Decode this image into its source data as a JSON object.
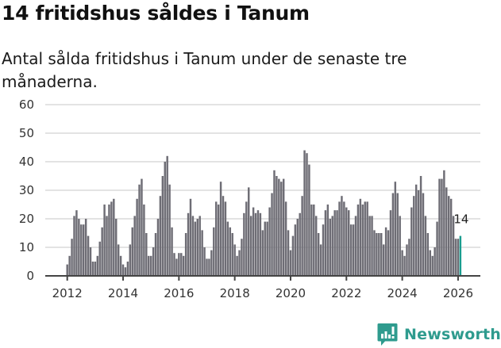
{
  "header": {
    "title": "14 fritidshus såldes i Tanum",
    "subtitle": "Antal sålda fritidshus i Tanum under de senaste tre månaderna."
  },
  "branding": {
    "logo_label": "Newsworthy",
    "logo_icon": "newsworthy-bar-chart-bubble-icon",
    "brand_color": "#2f9b8e"
  },
  "colors": {
    "bar": "#6e6d75",
    "highlight": "#1a9d8f",
    "grid": "#e3e3e3",
    "axis": "#444444"
  },
  "chart_data": {
    "type": "bar",
    "title": "14 fritidshus såldes i Tanum",
    "subtitle": "Antal sålda fritidshus i Tanum under de senaste tre månaderna.",
    "xlabel": "",
    "ylabel": "",
    "ylim": [
      0,
      60
    ],
    "yticks": [
      0,
      10,
      20,
      30,
      40,
      50,
      60
    ],
    "xticks": [
      "2012",
      "2014",
      "2016",
      "2018",
      "2020",
      "2022",
      "2024",
      "2026"
    ],
    "grid": true,
    "legend": null,
    "start": "2012-01",
    "end": "2026-02",
    "frequency": "monthly",
    "annotation": {
      "label": "14",
      "target": "2026-02"
    },
    "highlight_index": 169,
    "values": [
      4,
      7,
      13,
      21,
      23,
      20,
      18,
      18,
      20,
      14,
      10,
      5,
      5,
      7,
      12,
      17,
      25,
      21,
      25,
      26,
      27,
      20,
      11,
      7,
      4,
      3,
      5,
      11,
      17,
      21,
      27,
      32,
      34,
      25,
      15,
      7,
      7,
      10,
      15,
      20,
      28,
      35,
      40,
      42,
      32,
      17,
      8,
      6,
      8,
      8,
      7,
      15,
      22,
      27,
      21,
      19,
      20,
      21,
      16,
      10,
      6,
      6,
      9,
      17,
      26,
      25,
      33,
      28,
      26,
      19,
      17,
      15,
      11,
      7,
      9,
      13,
      22,
      26,
      31,
      21,
      24,
      22,
      23,
      22,
      16,
      19,
      19,
      24,
      29,
      37,
      35,
      34,
      33,
      34,
      26,
      16,
      9,
      14,
      18,
      20,
      22,
      28,
      44,
      43,
      39,
      25,
      25,
      21,
      15,
      11,
      18,
      23,
      25,
      20,
      21,
      23,
      23,
      26,
      28,
      26,
      24,
      23,
      18,
      18,
      21,
      25,
      27,
      25,
      26,
      26,
      21,
      21,
      16,
      15,
      15,
      15,
      11,
      17,
      16,
      23,
      29,
      33,
      29,
      21,
      9,
      7,
      11,
      13,
      24,
      28,
      32,
      30,
      35,
      29,
      21,
      15,
      9,
      7,
      10,
      19,
      34,
      34,
      37,
      31,
      28,
      27,
      21,
      13,
      13,
      14
    ]
  }
}
